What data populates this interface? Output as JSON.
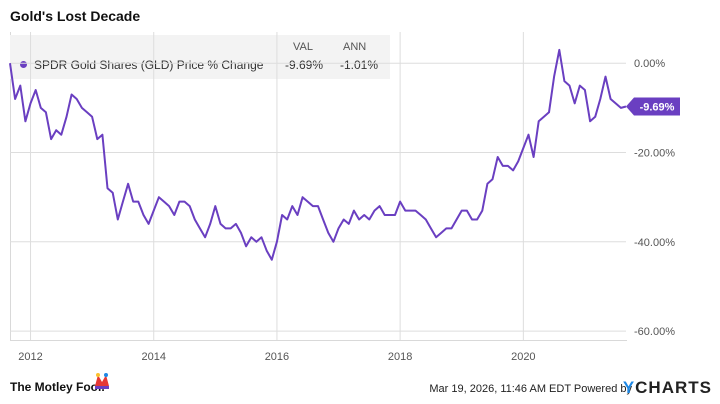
{
  "title": "Gold's Lost Decade",
  "legend": {
    "header_val": "VAL",
    "header_ann": "ANN",
    "series_name": "SPDR Gold Shares (GLD) Price % Change",
    "val": "-9.69%",
    "ann": "-1.01%"
  },
  "footer": {
    "brand": "The Motley Fool.",
    "timestamp": "Mar 19, 2026, 11:46 AM EDT",
    "powered_by": "Powered by",
    "ycharts": "CHARTS",
    "ycharts_y": "Y"
  },
  "colors": {
    "series": "#6a3fc1",
    "grid": "#dddddd",
    "axis_text": "#555555"
  },
  "chart_data": {
    "type": "line",
    "title": "Gold's Lost Decade",
    "xlabel": "",
    "ylabel": "",
    "x_ticks": [
      "2012",
      "2014",
      "2016",
      "2018",
      "2020"
    ],
    "y_ticks": [
      "0.00%",
      "-20.00%",
      "-40.00%",
      "-60.00%"
    ],
    "ylim": [
      -62,
      7
    ],
    "xlim": [
      "2011-09",
      "2021-09"
    ],
    "last_value_label": "-9.69%",
    "series": [
      {
        "name": "SPDR Gold Shares (GLD) Price % Change",
        "points": [
          [
            "2011-09",
            0
          ],
          [
            "2011-10",
            -8
          ],
          [
            "2011-11",
            -5
          ],
          [
            "2011-12",
            -13
          ],
          [
            "2012-01",
            -9
          ],
          [
            "2012-02",
            -6
          ],
          [
            "2012-03",
            -10
          ],
          [
            "2012-04",
            -11
          ],
          [
            "2012-05",
            -17
          ],
          [
            "2012-06",
            -15
          ],
          [
            "2012-07",
            -16
          ],
          [
            "2012-08",
            -12
          ],
          [
            "2012-09",
            -7
          ],
          [
            "2012-10",
            -8
          ],
          [
            "2012-11",
            -10
          ],
          [
            "2012-12",
            -11
          ],
          [
            "2013-01",
            -12
          ],
          [
            "2013-02",
            -17
          ],
          [
            "2013-03",
            -16
          ],
          [
            "2013-04",
            -28
          ],
          [
            "2013-05",
            -29
          ],
          [
            "2013-06",
            -35
          ],
          [
            "2013-07",
            -31
          ],
          [
            "2013-08",
            -27
          ],
          [
            "2013-09",
            -31
          ],
          [
            "2013-10",
            -31
          ],
          [
            "2013-11",
            -34
          ],
          [
            "2013-12",
            -36
          ],
          [
            "2014-01",
            -33
          ],
          [
            "2014-02",
            -30
          ],
          [
            "2014-03",
            -31
          ],
          [
            "2014-04",
            -32
          ],
          [
            "2014-05",
            -34
          ],
          [
            "2014-06",
            -31
          ],
          [
            "2014-07",
            -31
          ],
          [
            "2014-08",
            -32
          ],
          [
            "2014-09",
            -35
          ],
          [
            "2014-10",
            -37
          ],
          [
            "2014-11",
            -39
          ],
          [
            "2014-12",
            -36
          ],
          [
            "2015-01",
            -32
          ],
          [
            "2015-02",
            -36
          ],
          [
            "2015-03",
            -37
          ],
          [
            "2015-04",
            -37
          ],
          [
            "2015-05",
            -36
          ],
          [
            "2015-06",
            -38
          ],
          [
            "2015-07",
            -41
          ],
          [
            "2015-08",
            -39
          ],
          [
            "2015-09",
            -40
          ],
          [
            "2015-10",
            -39
          ],
          [
            "2015-11",
            -42
          ],
          [
            "2015-12",
            -44
          ],
          [
            "2016-01",
            -40
          ],
          [
            "2016-02",
            -34
          ],
          [
            "2016-03",
            -35
          ],
          [
            "2016-04",
            -32
          ],
          [
            "2016-05",
            -34
          ],
          [
            "2016-06",
            -30
          ],
          [
            "2016-07",
            -31
          ],
          [
            "2016-08",
            -32
          ],
          [
            "2016-09",
            -32
          ],
          [
            "2016-10",
            -35
          ],
          [
            "2016-11",
            -38
          ],
          [
            "2016-12",
            -40
          ],
          [
            "2017-01",
            -37
          ],
          [
            "2017-02",
            -35
          ],
          [
            "2017-03",
            -36
          ],
          [
            "2017-04",
            -33
          ],
          [
            "2017-05",
            -35
          ],
          [
            "2017-06",
            -34
          ],
          [
            "2017-07",
            -35
          ],
          [
            "2017-08",
            -33
          ],
          [
            "2017-09",
            -32
          ],
          [
            "2017-10",
            -34
          ],
          [
            "2017-11",
            -34
          ],
          [
            "2017-12",
            -34
          ],
          [
            "2018-01",
            -31
          ],
          [
            "2018-02",
            -33
          ],
          [
            "2018-03",
            -33
          ],
          [
            "2018-04",
            -33
          ],
          [
            "2018-05",
            -34
          ],
          [
            "2018-06",
            -35
          ],
          [
            "2018-07",
            -37
          ],
          [
            "2018-08",
            -39
          ],
          [
            "2018-09",
            -38
          ],
          [
            "2018-10",
            -37
          ],
          [
            "2018-11",
            -37
          ],
          [
            "2018-12",
            -35
          ],
          [
            "2019-01",
            -33
          ],
          [
            "2019-02",
            -33
          ],
          [
            "2019-03",
            -35
          ],
          [
            "2019-04",
            -35
          ],
          [
            "2019-05",
            -33
          ],
          [
            "2019-06",
            -27
          ],
          [
            "2019-07",
            -26
          ],
          [
            "2019-08",
            -21
          ],
          [
            "2019-09",
            -23
          ],
          [
            "2019-10",
            -23
          ],
          [
            "2019-11",
            -24
          ],
          [
            "2019-12",
            -22
          ],
          [
            "2020-01",
            -19
          ],
          [
            "2020-02",
            -16
          ],
          [
            "2020-03",
            -21
          ],
          [
            "2020-04",
            -13
          ],
          [
            "2020-05",
            -12
          ],
          [
            "2020-06",
            -11
          ],
          [
            "2020-07",
            -3
          ],
          [
            "2020-08",
            3
          ],
          [
            "2020-09",
            -4
          ],
          [
            "2020-10",
            -5
          ],
          [
            "2020-11",
            -9
          ],
          [
            "2020-12",
            -5
          ],
          [
            "2021-01",
            -6
          ],
          [
            "2021-02",
            -13
          ],
          [
            "2021-03",
            -12
          ],
          [
            "2021-04",
            -8
          ],
          [
            "2021-05",
            -3
          ],
          [
            "2021-06",
            -8
          ],
          [
            "2021-07",
            -9
          ],
          [
            "2021-08",
            -10
          ],
          [
            "2021-09",
            -9.69
          ]
        ]
      }
    ]
  }
}
